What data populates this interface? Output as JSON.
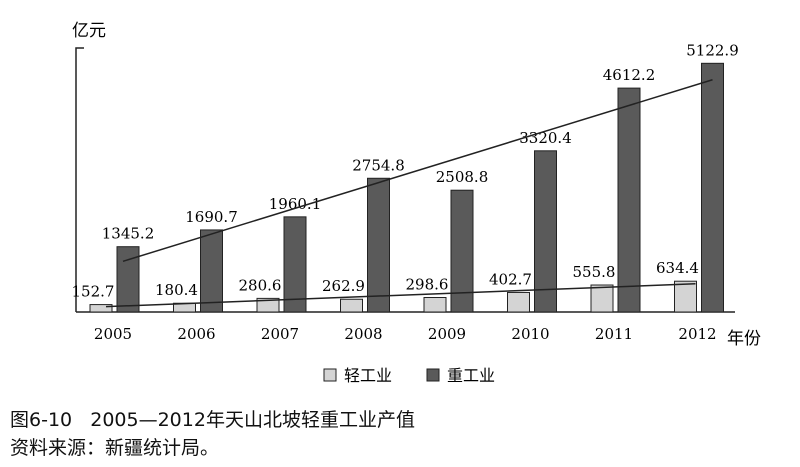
{
  "chart_data": {
    "type": "bar",
    "ylabel": "亿元",
    "xlabel": "年份",
    "categories": [
      "2005",
      "2006",
      "2007",
      "2008",
      "2009",
      "2010",
      "2011",
      "2012"
    ],
    "series": [
      {
        "name": "轻工业",
        "values": [
          152.7,
          180.4,
          280.6,
          262.9,
          298.6,
          402.7,
          555.8,
          634.4
        ],
        "color": "#d4d4d4"
      },
      {
        "name": "重工业",
        "values": [
          1345.2,
          1690.7,
          1960.1,
          2754.8,
          2508.8,
          3320.4,
          4612.2,
          5122.9
        ],
        "color": "#5a5a5a"
      }
    ],
    "data_labels": [
      [
        "152.7",
        "180.4",
        "280.6",
        "262.9",
        "298.6",
        "402.7",
        "555.8",
        "634.4"
      ],
      [
        "1345.2",
        "1690.7",
        "1960.1",
        "2754.8",
        "2508.8",
        "3320.4",
        "4612.2",
        "5122.9"
      ]
    ],
    "trendlines": true,
    "ylim": [
      0,
      5500
    ],
    "grid": false,
    "legend_position": "bottom"
  },
  "caption": {
    "line1": "图6-10   2005—2012年天山北坡轻重工业产值",
    "line2": "资料来源：新疆统计局。"
  }
}
